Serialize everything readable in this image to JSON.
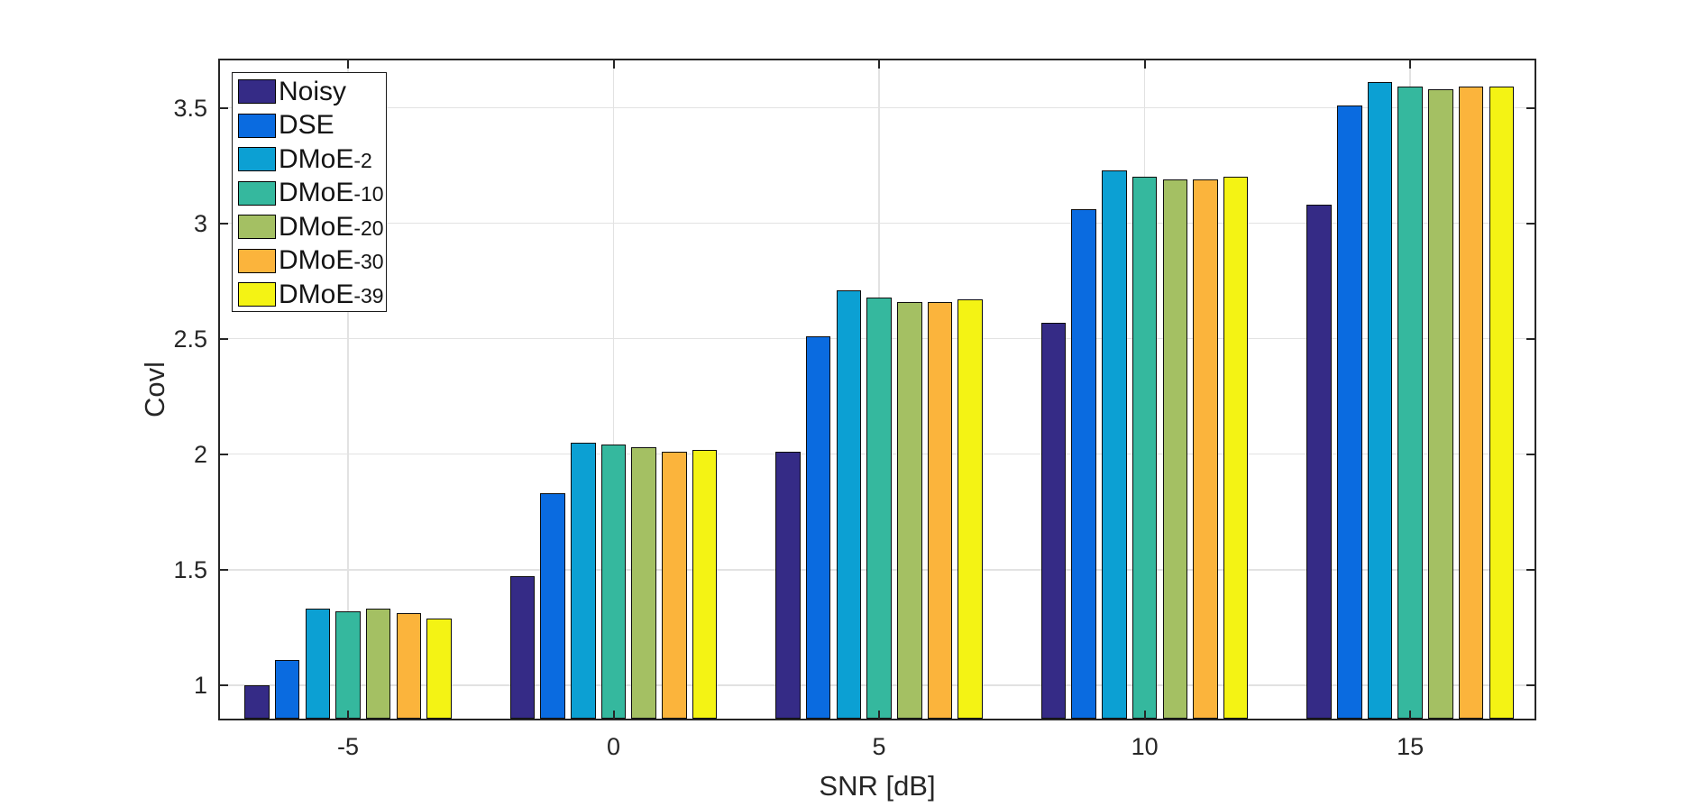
{
  "chart_data": {
    "type": "bar",
    "title": "",
    "xlabel": "SNR [dB]",
    "ylabel": "Covl",
    "categories": [
      -5,
      0,
      5,
      10,
      15
    ],
    "xtick_labels": [
      "-5",
      "0",
      "5",
      "10",
      "15"
    ],
    "yticks": [
      1,
      1.5,
      2,
      2.5,
      3,
      3.5
    ],
    "ytick_labels": [
      "1",
      "1.5",
      "2",
      "2.5",
      "3",
      "3.5"
    ],
    "ylim": [
      0.855,
      3.705
    ],
    "xlim": [
      -7.41,
      17.34
    ],
    "grid": true,
    "legend_position": "top-left-inside",
    "series": [
      {
        "name": "Noisy",
        "color": "#352B86",
        "values": [
          1.0,
          1.47,
          2.01,
          2.57,
          3.08
        ]
      },
      {
        "name": "DSE",
        "color": "#0A6BE0",
        "values": [
          1.11,
          1.83,
          2.51,
          3.06,
          3.51
        ]
      },
      {
        "name": "DMoE-2",
        "color": "#0CA0D3",
        "values": [
          1.33,
          2.05,
          2.71,
          3.23,
          3.61
        ]
      },
      {
        "name": "DMoE-10",
        "color": "#35B89E",
        "values": [
          1.32,
          2.04,
          2.68,
          3.2,
          3.59
        ]
      },
      {
        "name": "DMoE-20",
        "color": "#A4C063",
        "values": [
          1.33,
          2.03,
          2.66,
          3.19,
          3.58
        ]
      },
      {
        "name": "DMoE-30",
        "color": "#FBB43C",
        "values": [
          1.31,
          2.01,
          2.66,
          3.19,
          3.59
        ]
      },
      {
        "name": "DMoE-39",
        "color": "#F4F314",
        "values": [
          1.29,
          2.02,
          2.67,
          3.2,
          3.59
        ]
      }
    ]
  },
  "colors": {
    "axis": "#262626",
    "grid": "#e2e2e2",
    "text": "#262626",
    "background": "#ffffff",
    "bar_edge": "#0d0d0d"
  }
}
